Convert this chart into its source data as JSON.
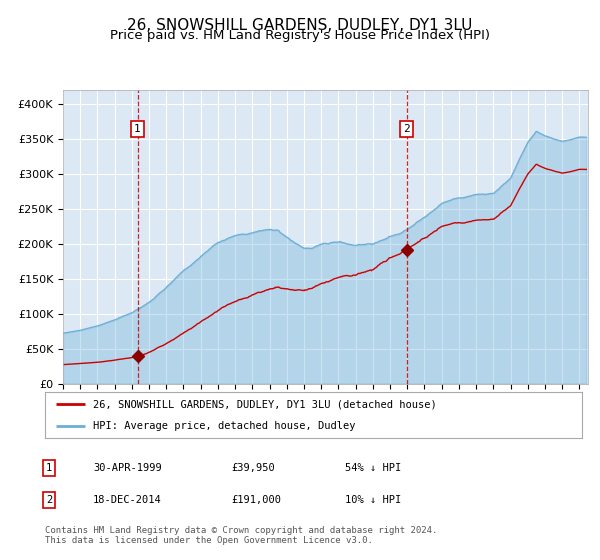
{
  "title": "26, SNOWSHILL GARDENS, DUDLEY, DY1 3LU",
  "subtitle": "Price paid vs. HM Land Registry's House Price Index (HPI)",
  "background_color": "#ffffff",
  "plot_bg_color": "#dce9f5",
  "grid_color": "#ffffff",
  "sale1_date_num": 1999.33,
  "sale1_price": 39950,
  "sale1_label": "1",
  "sale2_date_num": 2014.96,
  "sale2_price": 191000,
  "sale2_label": "2",
  "legend_line1": "26, SNOWSHILL GARDENS, DUDLEY, DY1 3LU (detached house)",
  "legend_line2": "HPI: Average price, detached house, Dudley",
  "table_row1": [
    "1",
    "30-APR-1999",
    "£39,950",
    "54% ↓ HPI"
  ],
  "table_row2": [
    "2",
    "18-DEC-2014",
    "£191,000",
    "10% ↓ HPI"
  ],
  "footer": "Contains HM Land Registry data © Crown copyright and database right 2024.\nThis data is licensed under the Open Government Licence v3.0.",
  "ylim": [
    0,
    420000
  ],
  "xlim_start": 1995.0,
  "xlim_end": 2025.5,
  "hpi_color": "#6baed6",
  "price_color": "#cc0000",
  "sale_marker_color": "#8b0000",
  "vline_color": "#cc0000",
  "title_fontsize": 11,
  "subtitle_fontsize": 9.5,
  "tick_fontsize": 8,
  "hpi_anchors_x": [
    1995.0,
    1996.0,
    1997.0,
    1998.0,
    1999.0,
    2000.0,
    2001.0,
    2002.0,
    2003.0,
    2004.0,
    2005.0,
    2006.0,
    2007.0,
    2007.5,
    2008.0,
    2008.5,
    2009.0,
    2009.5,
    2010.0,
    2011.0,
    2012.0,
    2013.0,
    2014.0,
    2014.5,
    2015.0,
    2016.0,
    2017.0,
    2018.0,
    2019.0,
    2020.0,
    2021.0,
    2021.5,
    2022.0,
    2022.5,
    2023.0,
    2023.5,
    2024.0,
    2024.5,
    2025.0,
    2025.4
  ],
  "hpi_anchors_y": [
    72000,
    76000,
    82000,
    90000,
    100000,
    115000,
    135000,
    158000,
    178000,
    198000,
    208000,
    213000,
    218000,
    215000,
    205000,
    195000,
    187000,
    188000,
    192000,
    195000,
    190000,
    194000,
    203000,
    208000,
    215000,
    233000,
    252000,
    263000,
    268000,
    270000,
    292000,
    318000,
    342000,
    358000,
    352000,
    348000,
    345000,
    348000,
    352000,
    352000
  ],
  "noise_seed_hpi": 10,
  "noise_seed_prop": 42,
  "noise_scale_hpi": 350,
  "noise_scale_prop": 280
}
